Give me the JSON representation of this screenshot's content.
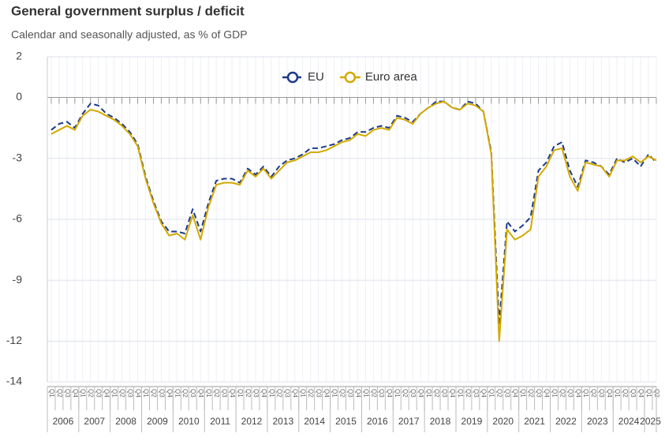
{
  "chart_data": {
    "type": "line",
    "title": "General government surplus / deficit",
    "subtitle": "Calendar and seasonally adjusted, as % of GDP",
    "years": [
      "2006",
      "2007",
      "2008",
      "2009",
      "2010",
      "2011",
      "2012",
      "2013",
      "2014",
      "2015",
      "2016",
      "2017",
      "2018",
      "2019",
      "2020",
      "2021",
      "2022",
      "2023",
      "2024",
      "2025"
    ],
    "categories": [
      "Q1",
      "Q2",
      "Q3",
      "Q4",
      "Q1",
      "Q2",
      "Q3",
      "Q4",
      "Q1",
      "Q2",
      "Q3",
      "Q4",
      "Q1",
      "Q2",
      "Q3",
      "Q4",
      "Q1",
      "Q2",
      "Q3",
      "Q4",
      "Q1",
      "Q2",
      "Q3",
      "Q4",
      "Q1",
      "Q2",
      "Q3",
      "Q4",
      "Q1",
      "Q2",
      "Q3",
      "Q4",
      "Q1",
      "Q2",
      "Q3",
      "Q4",
      "Q1",
      "Q2",
      "Q3",
      "Q4",
      "Q1",
      "Q2",
      "Q3",
      "Q4",
      "Q1",
      "Q2",
      "Q3",
      "Q4",
      "Q1",
      "Q2",
      "Q3",
      "Q4",
      "Q1",
      "Q2",
      "Q3",
      "Q4",
      "Q1",
      "Q2",
      "Q3",
      "Q4",
      "Q1",
      "Q2",
      "Q3",
      "Q4",
      "Q1",
      "Q2",
      "Q3",
      "Q4",
      "Q1",
      "Q2",
      "Q3",
      "Q4",
      "Q1",
      "Q2",
      "Q3",
      "Q4",
      "Q1",
      "Q2"
    ],
    "series": [
      {
        "name": "EU",
        "color": "#1d3a8a",
        "dashed": true,
        "values": [
          -1.6,
          -1.3,
          -1.2,
          -1.5,
          -0.8,
          -0.3,
          -0.4,
          -0.8,
          -1.0,
          -1.3,
          -1.7,
          -2.3,
          -3.9,
          -5.1,
          -6.1,
          -6.6,
          -6.6,
          -6.7,
          -5.5,
          -6.6,
          -5.2,
          -4.1,
          -4.0,
          -4.0,
          -4.2,
          -3.5,
          -3.8,
          -3.4,
          -3.9,
          -3.4,
          -3.1,
          -3.0,
          -2.8,
          -2.5,
          -2.5,
          -2.4,
          -2.3,
          -2.1,
          -2.0,
          -1.7,
          -1.7,
          -1.5,
          -1.4,
          -1.5,
          -0.9,
          -1.0,
          -1.2,
          -0.8,
          -0.5,
          -0.2,
          -0.2,
          -0.5,
          -0.6,
          -0.2,
          -0.3,
          -0.7,
          -2.7,
          -11.2,
          -6.1,
          -6.6,
          -6.3,
          -5.9,
          -3.6,
          -3.2,
          -2.4,
          -2.2,
          -3.6,
          -4.4,
          -3.1,
          -3.2,
          -3.4,
          -3.8,
          -3.0,
          -3.2,
          -3.0,
          -3.4,
          -2.8,
          -3.2
        ]
      },
      {
        "name": "Euro area",
        "color": "#d4a900",
        "dashed": false,
        "values": [
          -1.8,
          -1.6,
          -1.4,
          -1.6,
          -0.9,
          -0.6,
          -0.7,
          -0.9,
          -1.1,
          -1.4,
          -1.8,
          -2.4,
          -4.0,
          -5.2,
          -6.2,
          -6.8,
          -6.7,
          -7.0,
          -5.8,
          -7.0,
          -5.4,
          -4.3,
          -4.2,
          -4.2,
          -4.3,
          -3.6,
          -3.9,
          -3.5,
          -4.0,
          -3.6,
          -3.2,
          -3.1,
          -2.9,
          -2.7,
          -2.7,
          -2.6,
          -2.4,
          -2.2,
          -2.1,
          -1.8,
          -1.9,
          -1.6,
          -1.5,
          -1.6,
          -1.0,
          -1.1,
          -1.3,
          -0.8,
          -0.5,
          -0.3,
          -0.2,
          -0.5,
          -0.6,
          -0.3,
          -0.4,
          -0.7,
          -2.8,
          -12.0,
          -6.5,
          -7.0,
          -6.8,
          -6.5,
          -3.9,
          -3.4,
          -2.6,
          -2.5,
          -3.9,
          -4.6,
          -3.2,
          -3.3,
          -3.4,
          -3.9,
          -3.1,
          -3.1,
          -2.9,
          -3.2,
          -2.9,
          -3.1
        ]
      }
    ],
    "ylim": [
      -14,
      2
    ],
    "yticks": [
      2,
      0,
      -3,
      -6,
      -9,
      -12,
      -14
    ],
    "grid": true,
    "legend": "top"
  }
}
